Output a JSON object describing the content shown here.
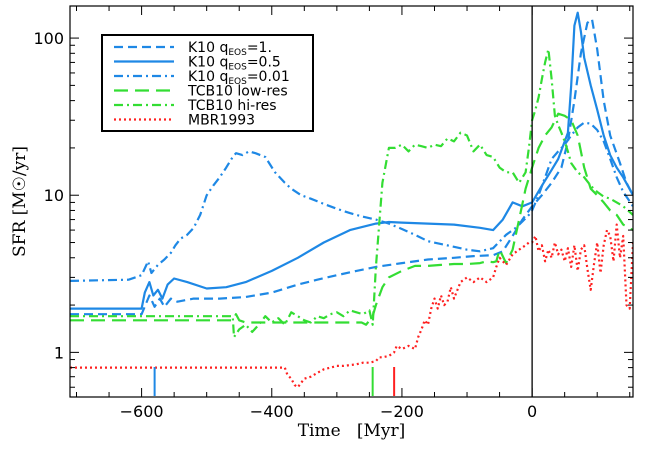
{
  "chart_data": {
    "type": "line",
    "xlabel": "Time   [Myr]",
    "ylabel": "SFR [M☉/yr]",
    "xlim": [
      -710,
      155
    ],
    "ylim": [
      0.52,
      160
    ],
    "yscale": "log",
    "grid": false,
    "legend_position": "top-left",
    "xticks": [
      -600,
      -400,
      -200,
      0
    ],
    "xtick_labels": [
      "−600",
      "−400",
      "−200",
      "0"
    ],
    "yticks": [
      1,
      10,
      100
    ],
    "ytick_labels": [
      "1",
      "10",
      "100"
    ],
    "vline_x": 0,
    "series": [
      {
        "name": "K10 qEOS=1.",
        "name_main": "K10 q",
        "name_sub": "EOS",
        "name_rest": "=1.",
        "color": "#1e88e5",
        "dash": "9,5",
        "x": [
          -710,
          -600,
          -588,
          -580,
          -572,
          -565,
          -555,
          -545,
          -520,
          -480,
          -440,
          -400,
          -360,
          -330,
          -300,
          -270,
          -240,
          -200,
          -160,
          -120,
          -90,
          -60,
          -45,
          -30,
          -15,
          0,
          15,
          30,
          45,
          55,
          65,
          75,
          85,
          92,
          100,
          110,
          120,
          135,
          145,
          155
        ],
        "y": [
          1.75,
          1.75,
          2.3,
          1.95,
          2.2,
          1.95,
          2.2,
          2.1,
          2.2,
          2.2,
          2.25,
          2.4,
          2.7,
          2.9,
          3.1,
          3.3,
          3.5,
          3.7,
          3.9,
          4.0,
          4.1,
          4.15,
          4.4,
          5.5,
          7.0,
          8.5,
          10.0,
          12.0,
          15.0,
          22,
          40,
          80,
          125,
          132,
          85,
          40,
          24,
          16,
          12,
          10
        ]
      },
      {
        "name": "K10 qEOS=0.5",
        "name_main": "K10 q",
        "name_sub": "EOS",
        "name_rest": "=0.5",
        "color": "#1e88e5",
        "dash": "",
        "x": [
          -710,
          -600,
          -595,
          -588,
          -582,
          -575,
          -568,
          -560,
          -550,
          -530,
          -500,
          -470,
          -440,
          -400,
          -360,
          -320,
          -280,
          -240,
          -220,
          -200,
          -160,
          -120,
          -80,
          -60,
          -45,
          -30,
          -15,
          0,
          15,
          30,
          40,
          50,
          55,
          60,
          65,
          70,
          75,
          80,
          90,
          100,
          110,
          120,
          130,
          140,
          155
        ],
        "y": [
          1.9,
          1.9,
          2.4,
          2.8,
          2.3,
          2.5,
          2.2,
          2.7,
          2.95,
          2.8,
          2.55,
          2.6,
          2.8,
          3.3,
          4.0,
          5.0,
          6.0,
          6.6,
          6.75,
          6.7,
          6.6,
          6.5,
          6.2,
          6.0,
          7.0,
          9.0,
          8.5,
          9.0,
          11.5,
          14.5,
          17.0,
          22.0,
          25.0,
          50,
          120,
          145,
          110,
          75,
          50,
          35,
          24,
          18,
          15,
          13,
          10
        ]
      },
      {
        "name": "K10 qEOS=0.01",
        "name_main": "K10 q",
        "name_sub": "EOS",
        "name_rest": "=0.01",
        "color": "#1e88e5",
        "dash": "9,4,2,4",
        "x": [
          -710,
          -620,
          -600,
          -590,
          -585,
          -575,
          -565,
          -555,
          -548,
          -540,
          -530,
          -520,
          -510,
          -500,
          -490,
          -480,
          -470,
          -460,
          -455,
          -445,
          -435,
          -425,
          -410,
          -395,
          -380,
          -370,
          -355,
          -340,
          -320,
          -300,
          -280,
          -260,
          -240,
          -220,
          -200,
          -180,
          -160,
          -120,
          -100,
          -80,
          -60,
          -40,
          -25,
          -15,
          -5,
          0,
          10,
          20,
          30,
          40,
          50,
          60,
          70,
          80,
          90,
          100,
          110,
          120,
          130,
          140,
          155
        ],
        "y": [
          2.85,
          2.9,
          3.1,
          3.8,
          3.2,
          3.6,
          3.9,
          4.3,
          4.8,
          5.3,
          5.6,
          6.2,
          7.5,
          10.0,
          11.5,
          13.0,
          15.0,
          17.5,
          18.5,
          18.0,
          19.0,
          18.5,
          17.5,
          14.0,
          12.0,
          11.0,
          10.0,
          9.5,
          8.8,
          8.2,
          7.7,
          7.3,
          7.0,
          6.6,
          6.1,
          5.6,
          5.1,
          4.7,
          4.5,
          4.4,
          4.6,
          5.6,
          6.2,
          6.8,
          7.5,
          8.0,
          10.0,
          13.0,
          17.0,
          19.0,
          21.0,
          24.0,
          27.0,
          29.0,
          28.5,
          26.0,
          22.0,
          17.0,
          13.0,
          10.5,
          8.5
        ]
      },
      {
        "name": "TCB10 low-res",
        "name_main": "TCB10 low-res",
        "name_sub": "",
        "name_rest": "",
        "color": "#33dd33",
        "dash": "14,7",
        "x": [
          -710,
          -600,
          -560,
          -520,
          -480,
          -460,
          -455,
          -450,
          -440,
          -420,
          -400,
          -380,
          -360,
          -340,
          -320,
          -300,
          -280,
          -262,
          -255,
          -245,
          -240,
          -230,
          -220,
          -200,
          -180,
          -160,
          -140,
          -120,
          -100,
          -80,
          -70,
          -60,
          -55,
          -50,
          -40,
          -30,
          -20,
          -10,
          0,
          10,
          20,
          30,
          40,
          50,
          60,
          70,
          80,
          90,
          100,
          110,
          120,
          130,
          140,
          155
        ],
        "y": [
          1.6,
          1.6,
          1.6,
          1.6,
          1.6,
          1.6,
          1.75,
          1.6,
          1.55,
          1.55,
          1.55,
          1.55,
          1.55,
          1.55,
          1.55,
          1.55,
          1.55,
          1.55,
          1.5,
          1.7,
          2.0,
          2.6,
          3.0,
          3.3,
          3.55,
          3.55,
          3.6,
          3.65,
          3.65,
          3.7,
          3.8,
          3.75,
          3.8,
          4.5,
          3.7,
          4.5,
          7.0,
          11.0,
          15.0,
          20.0,
          24.0,
          27.0,
          33.0,
          32.0,
          30.0,
          24.0,
          15.0,
          11.0,
          10.0,
          9.0,
          8.0,
          7.5,
          6.5,
          6.0
        ]
      },
      {
        "name": "TCB10 hi-res",
        "name_main": "TCB10 hi-res",
        "name_sub": "",
        "name_rest": "",
        "color": "#33dd33",
        "dash": "9,4,2,4",
        "x": [
          -710,
          -600,
          -560,
          -520,
          -480,
          -460,
          -458,
          -450,
          -440,
          -430,
          -420,
          -410,
          -400,
          -390,
          -380,
          -370,
          -360,
          -350,
          -340,
          -330,
          -320,
          -310,
          -300,
          -290,
          -280,
          -270,
          -260,
          -250,
          -245,
          -240,
          -230,
          -220,
          -210,
          -200,
          -190,
          -180,
          -170,
          -160,
          -150,
          -140,
          -130,
          -120,
          -110,
          -100,
          -90,
          -80,
          -70,
          -60,
          -50,
          -40,
          -30,
          -20,
          -10,
          -5,
          0,
          5,
          10,
          15,
          20,
          25,
          30,
          35,
          40,
          45,
          50,
          55,
          60,
          70,
          80,
          90,
          100,
          110,
          120,
          130,
          140,
          155
        ],
        "y": [
          1.7,
          1.7,
          1.7,
          1.7,
          1.7,
          1.7,
          1.25,
          1.4,
          1.5,
          1.35,
          1.5,
          1.7,
          1.55,
          1.65,
          1.5,
          1.8,
          1.7,
          1.6,
          1.55,
          1.7,
          1.65,
          1.75,
          1.8,
          1.7,
          1.85,
          1.8,
          1.75,
          1.85,
          1.5,
          3.5,
          12.0,
          20.0,
          20.0,
          21.0,
          19.0,
          21.0,
          20.5,
          20.0,
          21.0,
          20.5,
          23.0,
          22.0,
          25.0,
          24.0,
          19.0,
          21.0,
          18.0,
          17.5,
          15.0,
          14.0,
          14.0,
          12.0,
          14.0,
          20.0,
          30.0,
          35.0,
          42.0,
          55.0,
          70.0,
          85.0,
          55.0,
          32.0,
          28.0,
          25.0,
          22.0,
          19.0,
          16.0,
          14.0,
          13.0,
          11.5,
          10.5,
          9.8,
          9.5,
          9.0,
          8.5,
          7.5
        ]
      },
      {
        "name": "MBR1993",
        "name_main": "MBR1993",
        "name_sub": "",
        "name_rest": "",
        "color": "#ff2020",
        "dash": "2,3",
        "x": [
          -710,
          -380,
          -376,
          -370,
          -365,
          -360,
          -350,
          -340,
          -330,
          -320,
          -310,
          -300,
          -290,
          -280,
          -270,
          -260,
          -250,
          -240,
          -235,
          -230,
          -220,
          -212,
          -208,
          -200,
          -190,
          -180,
          -175,
          -170,
          -165,
          -160,
          -155,
          -150,
          -145,
          -140,
          -135,
          -130,
          -125,
          -120,
          -110,
          -100,
          -90,
          -80,
          -70,
          -60,
          -55,
          -50,
          -40,
          -30,
          -20,
          -10,
          -5,
          0,
          5,
          10,
          15,
          20,
          25,
          30,
          35,
          40,
          45,
          50,
          55,
          60,
          65,
          70,
          75,
          80,
          85,
          90,
          95,
          100,
          105,
          110,
          115,
          120,
          125,
          130,
          135,
          140,
          145,
          150,
          155
        ],
        "y": [
          0.8,
          0.8,
          0.72,
          0.68,
          0.62,
          0.6,
          0.68,
          0.7,
          0.74,
          0.78,
          0.8,
          0.82,
          0.82,
          0.83,
          0.84,
          0.86,
          0.86,
          0.88,
          0.93,
          0.93,
          0.95,
          1.0,
          1.1,
          1.05,
          1.1,
          1.05,
          1.25,
          1.4,
          1.6,
          1.5,
          1.9,
          2.2,
          1.9,
          2.3,
          2.0,
          2.1,
          2.6,
          2.2,
          2.8,
          3.0,
          2.8,
          3.0,
          2.8,
          3.0,
          3.5,
          4.0,
          3.6,
          4.2,
          4.5,
          4.8,
          5.0,
          5.0,
          5.5,
          4.4,
          4.8,
          3.8,
          4.5,
          4.0,
          5.0,
          4.2,
          4.5,
          3.8,
          4.6,
          3.5,
          4.8,
          3.3,
          4.5,
          4.8,
          3.4,
          2.5,
          3.6,
          5.0,
          3.2,
          4.8,
          6.0,
          5.5,
          3.8,
          6.5,
          4.0,
          5.5,
          2.0,
          1.9,
          5.0
        ]
      }
    ],
    "markers": [
      {
        "x": -580,
        "color": "#1e88e5"
      },
      {
        "x": -245,
        "color": "#33dd33"
      },
      {
        "x": -212,
        "color": "#ff2020"
      }
    ]
  }
}
